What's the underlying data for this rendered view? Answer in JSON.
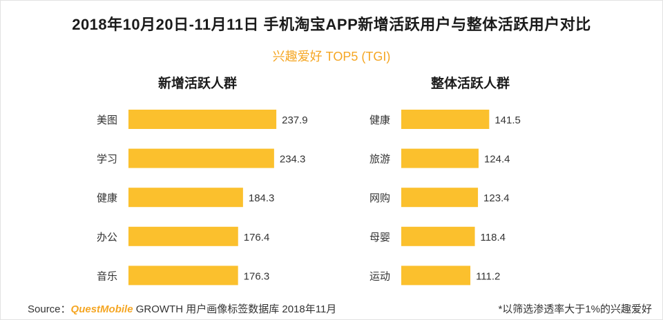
{
  "title": "2018年10月20日-11月11日 手机淘宝APP新增活跃用户与整体活跃用户对比",
  "subtitle": "兴趣爱好 TOP5 (TGI)",
  "colors": {
    "bar": "#fbc02d",
    "subtitle": "#f5a623",
    "brand": "#f5a623"
  },
  "chart_data": [
    {
      "type": "bar",
      "orientation": "horizontal",
      "title": "新增活跃人群",
      "categories": [
        "美图",
        "学习",
        "健康",
        "办公",
        "音乐"
      ],
      "values": [
        237.9,
        234.3,
        184.3,
        176.4,
        176.3
      ],
      "value_labels": [
        "237.9",
        "234.3",
        "184.3",
        "176.4",
        "176.3"
      ],
      "xlim": [
        0,
        240
      ]
    },
    {
      "type": "bar",
      "orientation": "horizontal",
      "title": "整体活跃人群",
      "categories": [
        "健康",
        "旅游",
        "网购",
        "母婴",
        "运动"
      ],
      "values": [
        141.5,
        124.4,
        123.4,
        118.4,
        111.2
      ],
      "value_labels": [
        "141.5",
        "124.4",
        "123.4",
        "118.4",
        "111.2"
      ],
      "xlim": [
        0,
        240
      ]
    }
  ],
  "footer": {
    "source_prefix": "Source：",
    "source_brand": "QuestMobile",
    "source_suffix": " GROWTH 用户画像标签数据库 2018年11月",
    "note": "*以筛选渗透率大于1%的兴趣爱好"
  }
}
